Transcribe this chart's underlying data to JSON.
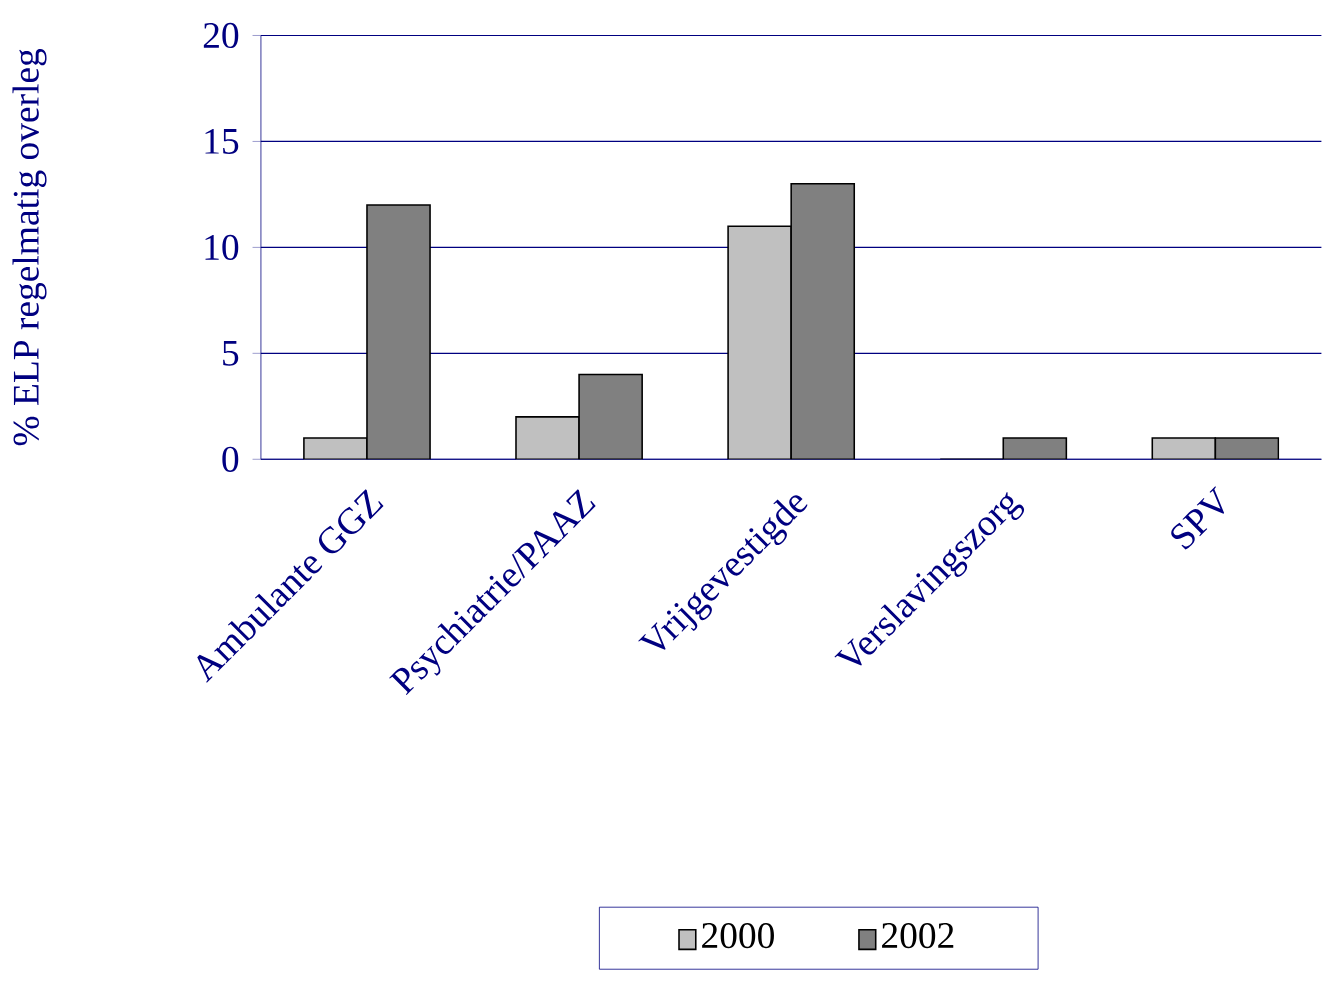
{
  "chart_data": {
    "type": "bar",
    "ylabel": "% ELP regelmatig overleg",
    "categories": [
      "Ambulante GGZ",
      "Psychiatrie/PAAZ",
      "Vrijgevestigde",
      "Verslavingszorg",
      "SPV"
    ],
    "series": [
      {
        "name": "2000",
        "color": "#c0c0c0",
        "values": [
          1,
          2,
          11,
          0,
          1
        ]
      },
      {
        "name": "2002",
        "color": "#808080",
        "values": [
          12,
          4,
          13,
          1,
          1
        ]
      }
    ],
    "ylim": [
      0,
      20
    ],
    "yticks": [
      0,
      5,
      10,
      15,
      20
    ],
    "grid": "y",
    "legend": "bottom"
  }
}
